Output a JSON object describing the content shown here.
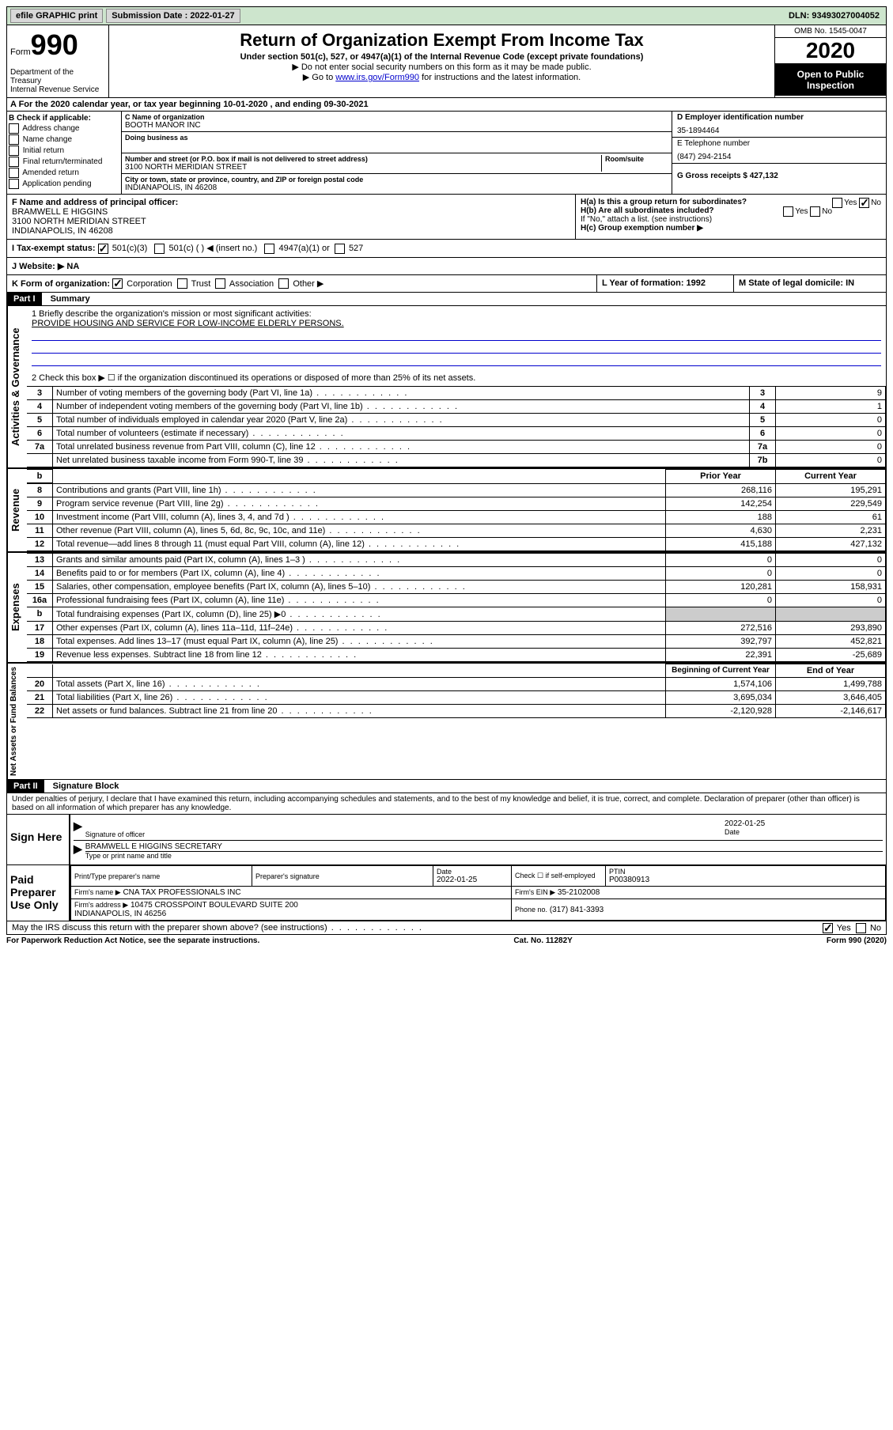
{
  "topbar": {
    "efile": "efile GRAPHIC print",
    "subdate_label": "Submission Date : 2022-01-27",
    "dln": "DLN: 93493027004052"
  },
  "header": {
    "form_label": "Form",
    "form_num": "990",
    "dept": "Department of the Treasury\nInternal Revenue Service",
    "title": "Return of Organization Exempt From Income Tax",
    "subtitle": "Under section 501(c), 527, or 4947(a)(1) of the Internal Revenue Code (except private foundations)",
    "instr1": "▶ Do not enter social security numbers on this form as it may be made public.",
    "instr2_pre": "▶ Go to ",
    "instr2_link": "www.irs.gov/Form990",
    "instr2_post": " for instructions and the latest information.",
    "omb": "OMB No. 1545-0047",
    "year": "2020",
    "open": "Open to Public Inspection"
  },
  "sectionA": "A For the 2020 calendar year, or tax year beginning 10-01-2020   , and ending 09-30-2021",
  "colB": {
    "label": "B Check if applicable:",
    "items": [
      "Address change",
      "Name change",
      "Initial return",
      "Final return/terminated",
      "Amended return",
      "Application pending"
    ]
  },
  "colC": {
    "name_label": "C Name of organization",
    "name": "BOOTH MANOR INC",
    "dba_label": "Doing business as",
    "addr_label": "Number and street (or P.O. box if mail is not delivered to street address)",
    "room_label": "Room/suite",
    "addr": "3100 NORTH MERIDIAN STREET",
    "city_label": "City or town, state or province, country, and ZIP or foreign postal code",
    "city": "INDIANAPOLIS, IN  46208"
  },
  "colDE": {
    "d_label": "D Employer identification number",
    "ein": "35-1894464",
    "e_label": "E Telephone number",
    "phone": "(847) 294-2154",
    "g_label": "G Gross receipts $ 427,132"
  },
  "rowF": {
    "label": "F Name and address of principal officer:",
    "name": "BRAMWELL E HIGGINS",
    "addr1": "3100 NORTH MERIDIAN STREET",
    "addr2": "INDIANAPOLIS, IN  46208"
  },
  "rowH": {
    "ha": "H(a)  Is this a group return for subordinates?",
    "hb": "H(b)  Are all subordinates included?",
    "hb_note": "If \"No,\" attach a list. (see instructions)",
    "hc": "H(c)  Group exemption number ▶",
    "yes": "Yes",
    "no": "No"
  },
  "rowI": {
    "label": "I  Tax-exempt status:",
    "opts": [
      "501(c)(3)",
      "501(c) (  ) ◀ (insert no.)",
      "4947(a)(1) or",
      "527"
    ]
  },
  "rowJ": "J  Website: ▶  NA",
  "rowK": {
    "label": "K Form of organization:",
    "opts": [
      "Corporation",
      "Trust",
      "Association",
      "Other ▶"
    ]
  },
  "rowL": "L Year of formation: 1992",
  "rowM": "M State of legal domicile: IN",
  "part1": {
    "header": "Part I",
    "title": "Summary",
    "line1": "1  Briefly describe the organization's mission or most significant activities:",
    "mission": "PROVIDE HOUSING AND SERVICE FOR LOW-INCOME ELDERLY PERSONS.",
    "line2": "2    Check this box ▶ ☐  if the organization discontinued its operations or disposed of more than 25% of its net assets.",
    "rows_top": [
      {
        "n": "3",
        "t": "Number of voting members of the governing body (Part VI, line 1a)",
        "b": "3",
        "v": "9"
      },
      {
        "n": "4",
        "t": "Number of independent voting members of the governing body (Part VI, line 1b)",
        "b": "4",
        "v": "1"
      },
      {
        "n": "5",
        "t": "Total number of individuals employed in calendar year 2020 (Part V, line 2a)",
        "b": "5",
        "v": "0"
      },
      {
        "n": "6",
        "t": "Total number of volunteers (estimate if necessary)",
        "b": "6",
        "v": "0"
      },
      {
        "n": "7a",
        "t": "Total unrelated business revenue from Part VIII, column (C), line 12",
        "b": "7a",
        "v": "0"
      },
      {
        "n": "",
        "t": "Net unrelated business taxable income from Form 990-T, line 39",
        "b": "7b",
        "v": "0"
      }
    ],
    "col_prior": "Prior Year",
    "col_curr": "Current Year",
    "rows_rev": [
      {
        "n": "8",
        "t": "Contributions and grants (Part VIII, line 1h)",
        "p": "268,116",
        "c": "195,291"
      },
      {
        "n": "9",
        "t": "Program service revenue (Part VIII, line 2g)",
        "p": "142,254",
        "c": "229,549"
      },
      {
        "n": "10",
        "t": "Investment income (Part VIII, column (A), lines 3, 4, and 7d )",
        "p": "188",
        "c": "61"
      },
      {
        "n": "11",
        "t": "Other revenue (Part VIII, column (A), lines 5, 6d, 8c, 9c, 10c, and 11e)",
        "p": "4,630",
        "c": "2,231"
      },
      {
        "n": "12",
        "t": "Total revenue—add lines 8 through 11 (must equal Part VIII, column (A), line 12)",
        "p": "415,188",
        "c": "427,132"
      }
    ],
    "rows_exp": [
      {
        "n": "13",
        "t": "Grants and similar amounts paid (Part IX, column (A), lines 1–3 )",
        "p": "0",
        "c": "0"
      },
      {
        "n": "14",
        "t": "Benefits paid to or for members (Part IX, column (A), line 4)",
        "p": "0",
        "c": "0"
      },
      {
        "n": "15",
        "t": "Salaries, other compensation, employee benefits (Part IX, column (A), lines 5–10)",
        "p": "120,281",
        "c": "158,931"
      },
      {
        "n": "16a",
        "t": "Professional fundraising fees (Part IX, column (A), line 11e)",
        "p": "0",
        "c": "0"
      },
      {
        "n": "b",
        "t": "Total fundraising expenses (Part IX, column (D), line 25) ▶0",
        "p": "",
        "c": "",
        "gray": true
      },
      {
        "n": "17",
        "t": "Other expenses (Part IX, column (A), lines 11a–11d, 11f–24e)",
        "p": "272,516",
        "c": "293,890"
      },
      {
        "n": "18",
        "t": "Total expenses. Add lines 13–17 (must equal Part IX, column (A), line 25)",
        "p": "392,797",
        "c": "452,821"
      },
      {
        "n": "19",
        "t": "Revenue less expenses. Subtract line 18 from line 12",
        "p": "22,391",
        "c": "-25,689"
      }
    ],
    "col_begin": "Beginning of Current Year",
    "col_end": "End of Year",
    "rows_net": [
      {
        "n": "20",
        "t": "Total assets (Part X, line 16)",
        "p": "1,574,106",
        "c": "1,499,788"
      },
      {
        "n": "21",
        "t": "Total liabilities (Part X, line 26)",
        "p": "3,695,034",
        "c": "3,646,405"
      },
      {
        "n": "22",
        "t": "Net assets or fund balances. Subtract line 21 from line 20",
        "p": "-2,120,928",
        "c": "-2,146,617"
      }
    ],
    "vert_gov": "Activities & Governance",
    "vert_rev": "Revenue",
    "vert_exp": "Expenses",
    "vert_net": "Net Assets or Fund Balances"
  },
  "part2": {
    "header": "Part II",
    "title": "Signature Block",
    "perjury": "Under penalties of perjury, I declare that I have examined this return, including accompanying schedules and statements, and to the best of my knowledge and belief, it is true, correct, and complete. Declaration of preparer (other than officer) is based on all information of which preparer has any knowledge.",
    "sign_here": "Sign Here",
    "sig_officer": "Signature of officer",
    "sig_date": "2022-01-25",
    "date_label": "Date",
    "officer_name": "BRAMWELL E HIGGINS  SECRETARY",
    "officer_label": "Type or print name and title",
    "paid": "Paid Preparer Use Only",
    "prep_name_label": "Print/Type preparer's name",
    "prep_sig_label": "Preparer's signature",
    "prep_date": "2022-01-25",
    "prep_check": "Check ☐ if self-employed",
    "ptin_label": "PTIN",
    "ptin": "P00380913",
    "firm_label": "Firm's name    ▶",
    "firm_name": "CNA TAX PROFESSIONALS INC",
    "firm_ein_label": "Firm's EIN ▶",
    "firm_ein": "35-2102008",
    "firm_addr_label": "Firm's address ▶",
    "firm_addr": "10475 CROSSPOINT BOULEVARD SUITE 200\nINDIANAPOLIS, IN  46256",
    "firm_phone_label": "Phone no.",
    "firm_phone": "(317) 841-3393",
    "discuss": "May the IRS discuss this return with the preparer shown above? (see instructions)"
  },
  "footer": {
    "left": "For Paperwork Reduction Act Notice, see the separate instructions.",
    "mid": "Cat. No. 11282Y",
    "right": "Form 990 (2020)"
  }
}
